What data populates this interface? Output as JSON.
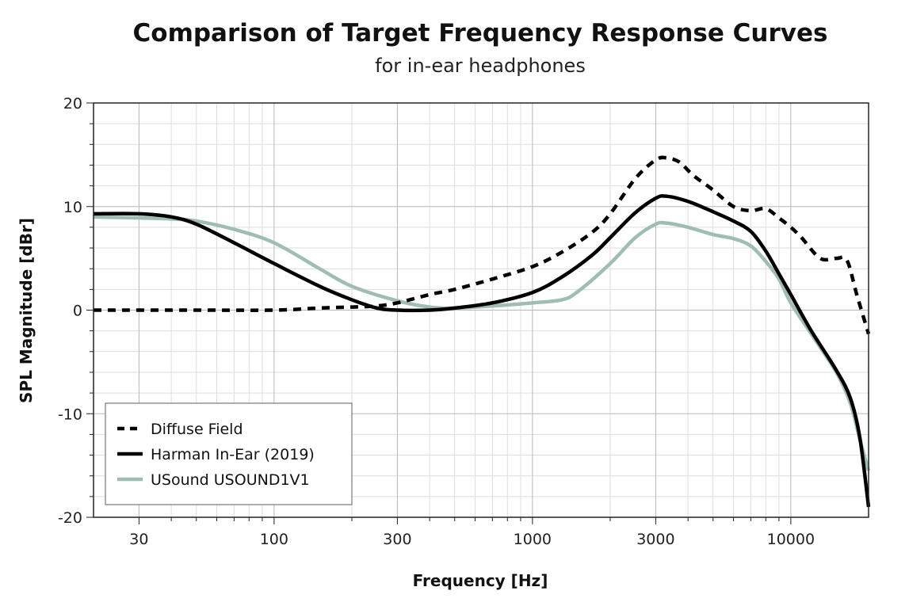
{
  "chart_data": {
    "type": "line",
    "title": "Comparison of Target Frequency Response Curves",
    "subtitle": "for in-ear headphones",
    "xlabel": "Frequency [Hz]",
    "ylabel": "SPL Magnitude [dBr]",
    "xscale": "log",
    "xlim": [
      20,
      20000
    ],
    "ylim": [
      -20,
      20
    ],
    "xticks": [
      30,
      100,
      300,
      1000,
      3000,
      10000
    ],
    "xtick_labels": [
      "30",
      "100",
      "300",
      "1000",
      "3000",
      "10000"
    ],
    "yticks": [
      -20,
      -10,
      0,
      10,
      20
    ],
    "ytick_labels": [
      "-20",
      "-10",
      "0",
      "10",
      "20"
    ],
    "grid": true,
    "legend_position": "bottom-left",
    "series": [
      {
        "name": "Diffuse Field",
        "style": "dashed",
        "color": "#000000",
        "points": [
          [
            20,
            0
          ],
          [
            50,
            0
          ],
          [
            100,
            0
          ],
          [
            150,
            0.2
          ],
          [
            200,
            0.3
          ],
          [
            250,
            0.4
          ],
          [
            300,
            0.7
          ],
          [
            400,
            1.5
          ],
          [
            500,
            2.0
          ],
          [
            700,
            3.0
          ],
          [
            1000,
            4.2
          ],
          [
            1300,
            5.6
          ],
          [
            1700,
            7.5
          ],
          [
            2000,
            9.3
          ],
          [
            2500,
            12.7
          ],
          [
            3000,
            14.5
          ],
          [
            3300,
            14.7
          ],
          [
            3700,
            14.3
          ],
          [
            4200,
            13.0
          ],
          [
            5000,
            11.6
          ],
          [
            6000,
            10.0
          ],
          [
            7000,
            9.6
          ],
          [
            8000,
            9.8
          ],
          [
            9000,
            8.9
          ],
          [
            10000,
            8.0
          ],
          [
            11000,
            7.0
          ],
          [
            13000,
            5.0
          ],
          [
            15000,
            5.0
          ],
          [
            16500,
            4.8
          ],
          [
            18000,
            1.5
          ],
          [
            20000,
            -2.3
          ]
        ]
      },
      {
        "name": "Harman In-Ear (2019)",
        "style": "solid",
        "color": "#000000",
        "points": [
          [
            20,
            9.3
          ],
          [
            30,
            9.3
          ],
          [
            40,
            9.0
          ],
          [
            50,
            8.3
          ],
          [
            70,
            6.5
          ],
          [
            100,
            4.5
          ],
          [
            150,
            2.3
          ],
          [
            200,
            1.0
          ],
          [
            250,
            0.2
          ],
          [
            300,
            0
          ],
          [
            400,
            0
          ],
          [
            500,
            0.2
          ],
          [
            700,
            0.7
          ],
          [
            1000,
            1.7
          ],
          [
            1300,
            3.2
          ],
          [
            1700,
            5.3
          ],
          [
            2000,
            7.0
          ],
          [
            2500,
            9.4
          ],
          [
            3000,
            10.8
          ],
          [
            3300,
            11.0
          ],
          [
            4000,
            10.5
          ],
          [
            5000,
            9.5
          ],
          [
            6000,
            8.6
          ],
          [
            7000,
            7.6
          ],
          [
            8000,
            5.7
          ],
          [
            9000,
            3.5
          ],
          [
            10000,
            1.5
          ],
          [
            12000,
            -2.0
          ],
          [
            15000,
            -5.8
          ],
          [
            17000,
            -8.5
          ],
          [
            18500,
            -12.3
          ],
          [
            20000,
            -19.0
          ]
        ]
      },
      {
        "name": "USound USOUND1V1",
        "style": "solid",
        "color": "#9fbdb4",
        "points": [
          [
            20,
            9.0
          ],
          [
            30,
            8.9
          ],
          [
            40,
            8.8
          ],
          [
            50,
            8.6
          ],
          [
            70,
            7.8
          ],
          [
            100,
            6.5
          ],
          [
            150,
            4.0
          ],
          [
            200,
            2.3
          ],
          [
            300,
            0.9
          ],
          [
            400,
            0.3
          ],
          [
            500,
            0.2
          ],
          [
            700,
            0.4
          ],
          [
            1000,
            0.7
          ],
          [
            1300,
            1.0
          ],
          [
            1500,
            1.8
          ],
          [
            2000,
            4.5
          ],
          [
            2500,
            7.0
          ],
          [
            3000,
            8.3
          ],
          [
            3300,
            8.4
          ],
          [
            4000,
            8.0
          ],
          [
            5000,
            7.3
          ],
          [
            6000,
            6.9
          ],
          [
            7000,
            6.2
          ],
          [
            8000,
            4.7
          ],
          [
            9000,
            3.0
          ],
          [
            10000,
            0.7
          ],
          [
            12000,
            -2.3
          ],
          [
            15000,
            -6.0
          ],
          [
            17000,
            -9.0
          ],
          [
            18500,
            -12.5
          ],
          [
            20000,
            -15.5
          ]
        ]
      }
    ]
  }
}
